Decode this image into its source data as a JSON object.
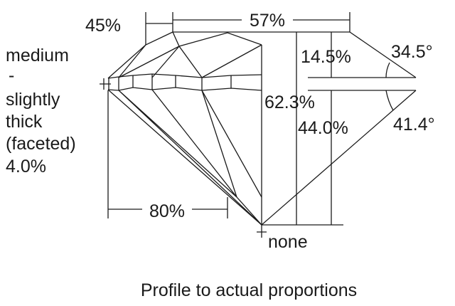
{
  "labels": {
    "crown_height_side": "45%",
    "table": "57%",
    "crown_height": "14.5%",
    "crown_angle": "34.5°",
    "total_depth": "62.3%",
    "pavilion_depth": "44.0%",
    "pavilion_angle": "41.4°",
    "lower_half": "80%",
    "culet": "none",
    "girdle": [
      "medium",
      "-",
      "slightly",
      "thick",
      "(faceted)",
      "4.0%"
    ]
  },
  "caption": "Profile to actual proportions"
}
